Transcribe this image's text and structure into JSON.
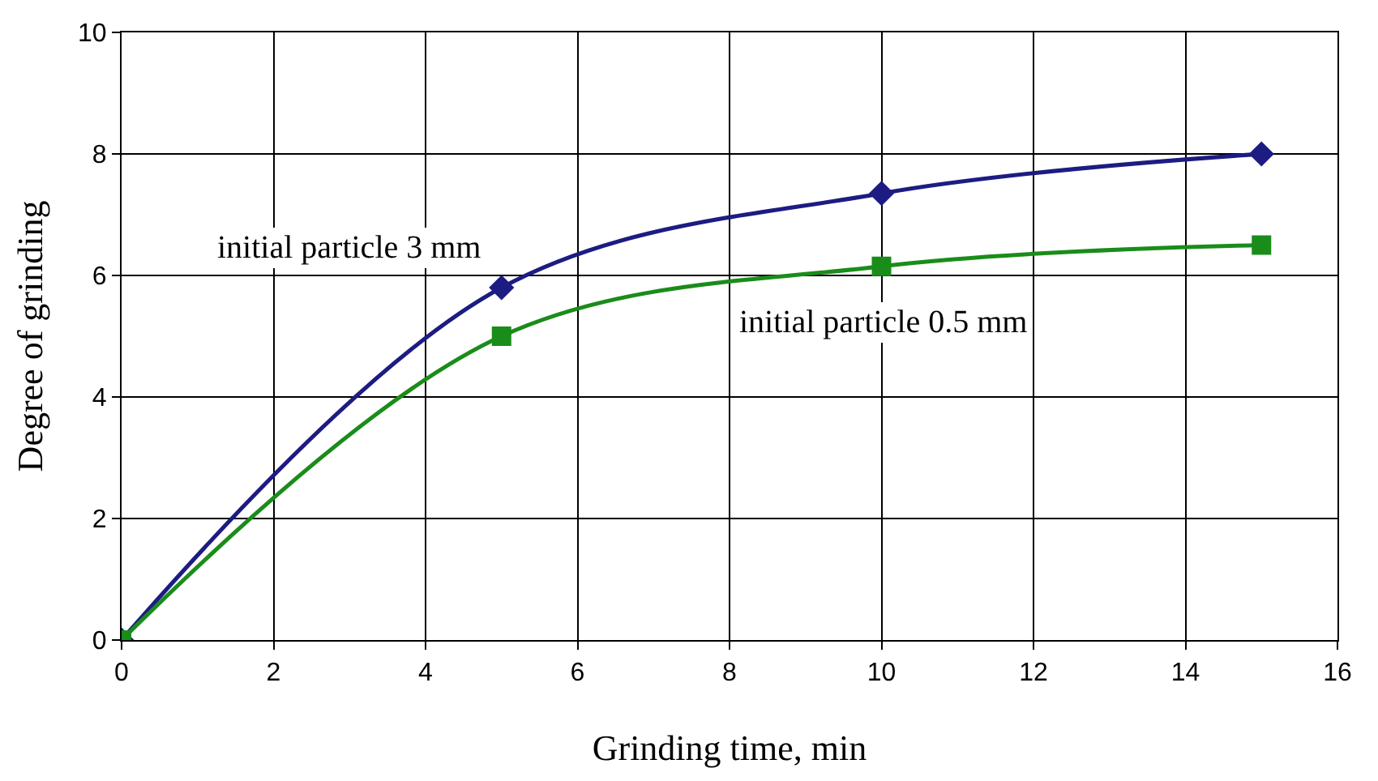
{
  "chart_data": {
    "type": "line",
    "xlabel": "Grinding time, min",
    "ylabel": "Degree of grinding",
    "xlim": [
      0,
      16
    ],
    "xticks": [
      0,
      2,
      4,
      6,
      8,
      10,
      12,
      14,
      16
    ],
    "ylim": [
      0,
      10
    ],
    "yticks": [
      0,
      2,
      4,
      6,
      8,
      10
    ],
    "grid": true,
    "legend": false,
    "series": [
      {
        "name": "initial particle 3 mm",
        "color": "#1c1c82",
        "marker": "diamond",
        "x": [
          0,
          5,
          10,
          15
        ],
        "values": [
          0,
          5.8,
          7.35,
          8
        ]
      },
      {
        "name": "initial particle 0.5 mm",
        "color": "#1a8c1a",
        "marker": "square",
        "x": [
          0,
          5,
          10,
          15
        ],
        "values": [
          0,
          5,
          6.15,
          6.5
        ]
      }
    ]
  }
}
